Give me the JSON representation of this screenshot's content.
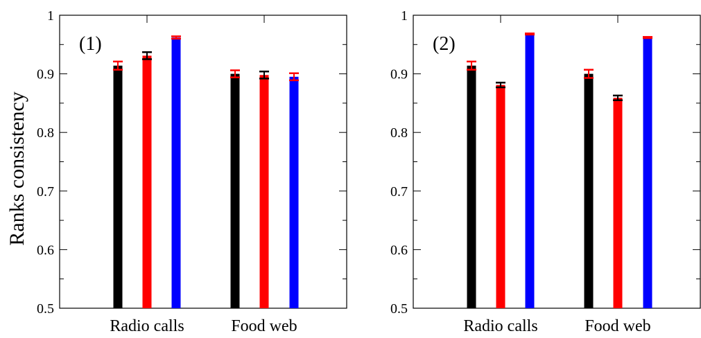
{
  "chart_data": [
    {
      "type": "bar",
      "panel_label": "(1)",
      "ylabel": "Ranks consistency",
      "ylim": [
        0.5,
        1.0
      ],
      "yticks": [
        0.5,
        0.6,
        0.7,
        0.8,
        0.9,
        1.0
      ],
      "ytick_labels": [
        "0.5",
        "0.6",
        "0.7",
        "0.8",
        "0.9",
        "1"
      ],
      "categories": [
        "Radio calls",
        "Food web"
      ],
      "grid": false,
      "series": [
        {
          "color": "#000000",
          "errorbar_color": "#000000",
          "values": [
            0.914,
            0.9
          ],
          "errors": [
            0.007,
            0.006
          ]
        },
        {
          "color": "#ff0000",
          "errorbar_color": "#000000",
          "values": [
            0.931,
            0.898
          ],
          "errors": [
            0.006,
            0.006
          ]
        },
        {
          "color": "#0000ff",
          "errorbar_color": "#ff0000",
          "values": [
            0.962,
            0.895
          ],
          "errors": [
            0.002,
            0.006
          ]
        }
      ],
      "series_errorbar_colors_food_web": [
        "#ff0000",
        "#000000",
        "#ff0000"
      ],
      "series_errorbar_colors_radio_calls": [
        "#ff0000",
        "#000000",
        "#ff0000"
      ]
    },
    {
      "type": "bar",
      "panel_label": "(2)",
      "ylabel": "",
      "ylim": [
        0.5,
        1.0
      ],
      "yticks": [
        0.5,
        0.6,
        0.7,
        0.8,
        0.9,
        1.0
      ],
      "ytick_labels": [
        "0.5",
        "0.6",
        "0.7",
        "0.8",
        "0.9",
        "1"
      ],
      "categories": [
        "Radio calls",
        "Food web"
      ],
      "grid": false,
      "series": [
        {
          "color": "#000000",
          "values": [
            0.914,
            0.9
          ],
          "errors": [
            0.007,
            0.007
          ]
        },
        {
          "color": "#ff0000",
          "values": [
            0.881,
            0.859
          ],
          "errors": [
            0.004,
            0.004
          ]
        },
        {
          "color": "#0000ff",
          "values": [
            0.968,
            0.962
          ],
          "errors": [
            0.001,
            0.001
          ]
        }
      ],
      "series_errorbar_colors_food_web": [
        "#ff0000",
        "#000000",
        "#ff0000"
      ],
      "series_errorbar_colors_radio_calls": [
        "#ff0000",
        "#000000",
        "#ff0000"
      ]
    }
  ]
}
